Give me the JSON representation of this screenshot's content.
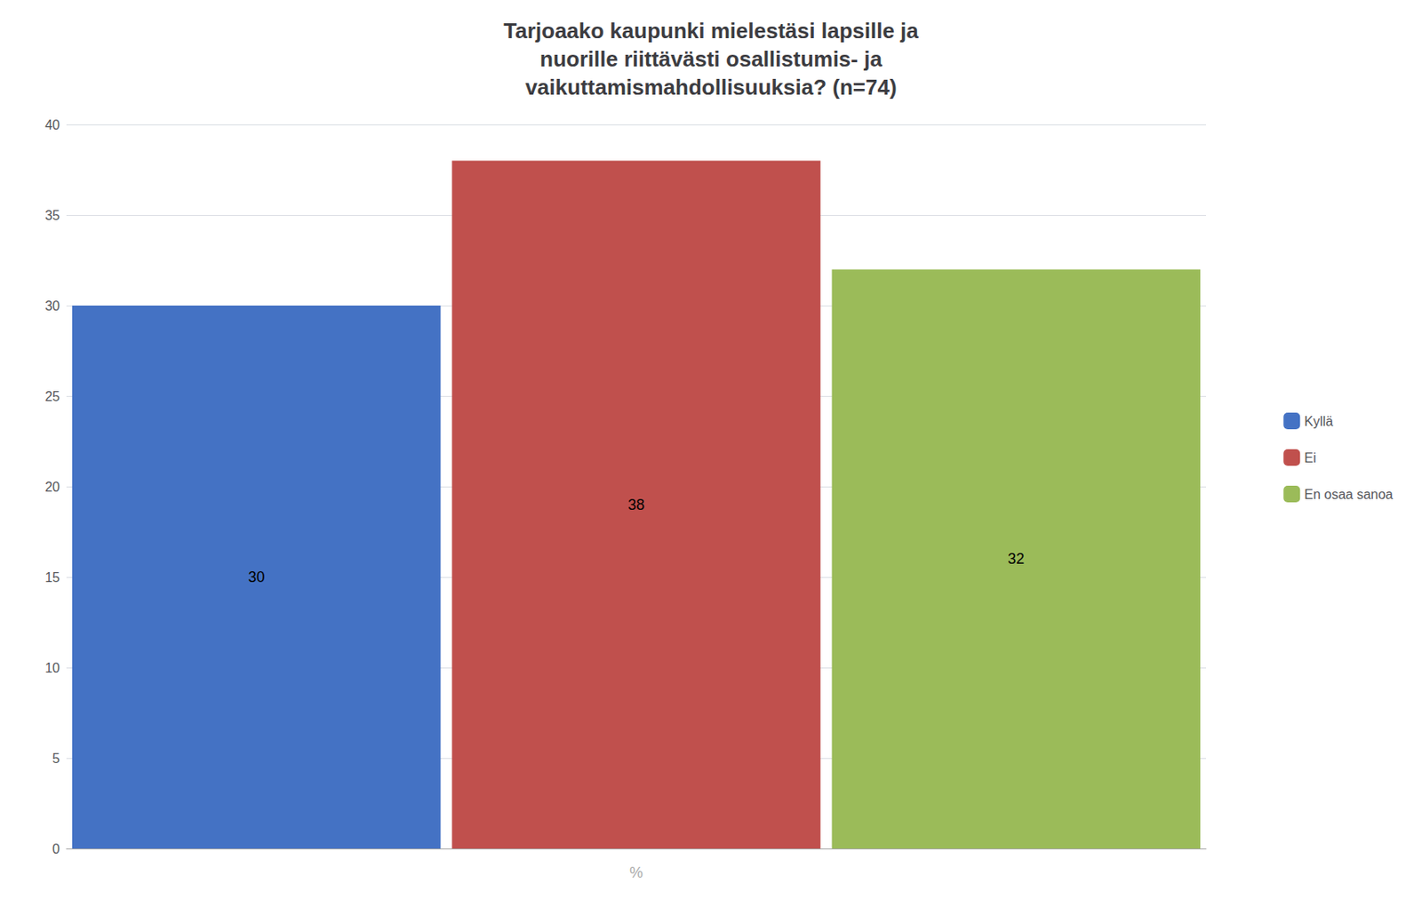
{
  "chart_data": {
    "type": "bar",
    "title": "Tarjoaako kaupunki mielestäsi lapsille ja\nnuorille riittävästi osallistumis- ja\nvaikuttamismahdollisuuksia? (n=74)",
    "categories": [
      "Kyllä",
      "Ei",
      "En osaa sanoa"
    ],
    "values": [
      30,
      38,
      32
    ],
    "colors": [
      "#4472C4",
      "#C0504D",
      "#9BBB59"
    ],
    "xlabel": "%",
    "ylim": [
      0,
      40
    ],
    "yticks": [
      0,
      5,
      10,
      15,
      20,
      25,
      30,
      35,
      40
    ],
    "grid": true,
    "legend": "right",
    "data_labels": true,
    "tick_labels": "y"
  }
}
